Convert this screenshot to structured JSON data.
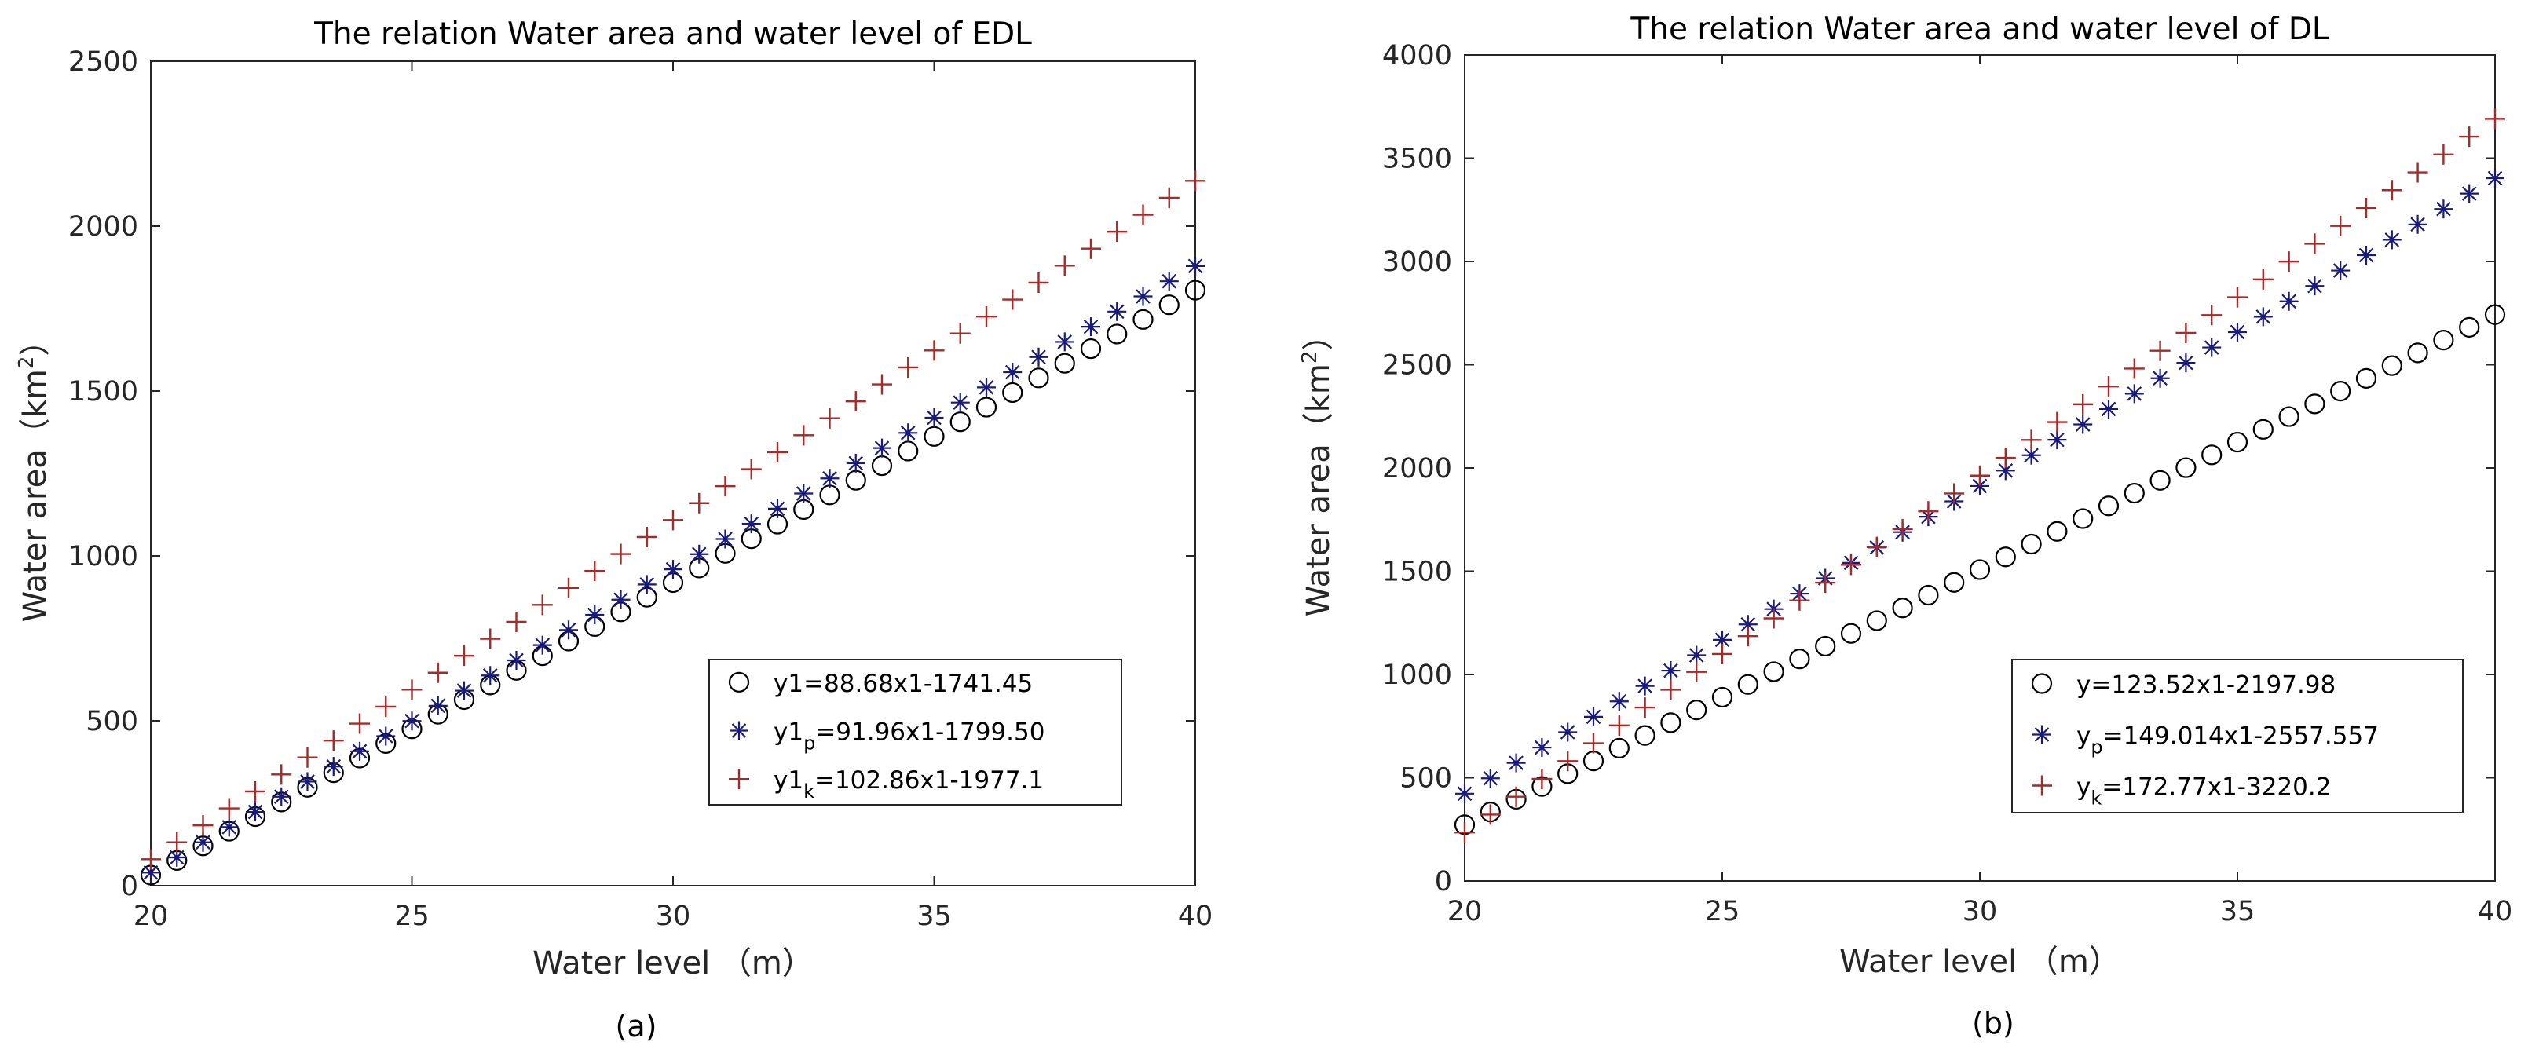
{
  "chart_data": [
    {
      "type": "scatter",
      "panel_label": "(a)",
      "title": "The relation Water area and water level of EDL",
      "xlabel": "Water level （m）",
      "ylabel": "Water area（km²）",
      "ylabel_base": "Water area（km",
      "ylabel_sup": "2",
      "ylabel_end": "）",
      "xlim": [
        20,
        40
      ],
      "ylim": [
        0,
        2500
      ],
      "xticks": [
        20,
        25,
        30,
        35,
        40
      ],
      "yticks": [
        0,
        500,
        1000,
        1500,
        2000,
        2500
      ],
      "x": [
        20,
        20.5,
        21,
        21.5,
        22,
        22.5,
        23,
        23.5,
        24,
        24.5,
        25,
        25.5,
        26,
        26.5,
        27,
        27.5,
        28,
        28.5,
        29,
        29.5,
        30,
        30.5,
        31,
        31.5,
        32,
        32.5,
        33,
        33.5,
        34,
        34.5,
        35,
        35.5,
        36,
        36.5,
        37,
        37.5,
        38,
        38.5,
        39,
        39.5,
        40
      ],
      "legend_position": "lower-right",
      "series": [
        {
          "name": "y1=88.68x1-1741.45",
          "marker": "circle",
          "color": "#000000",
          "slope": 88.68,
          "intercept": -1741.45,
          "legend": {
            "base": "y1",
            "sub": "",
            "rest": "=88.68x1-1741.45"
          }
        },
        {
          "name": "y1p=91.96x1-1799.50",
          "marker": "asterisk",
          "color": "#1a1a7a",
          "slope": 91.96,
          "intercept": -1799.5,
          "legend": {
            "base": "y1",
            "sub": "p",
            "rest": "=91.96x1-1799.50"
          }
        },
        {
          "name": "y1k=102.86x1-1977.1",
          "marker": "plus",
          "color": "#a52a2a",
          "slope": 102.86,
          "intercept": -1977.1,
          "legend": {
            "base": "y1",
            "sub": "k",
            "rest": "=102.86x1-1977.1"
          }
        }
      ]
    },
    {
      "type": "scatter",
      "panel_label": "(b)",
      "title": "The relation Water area and water level of DL",
      "xlabel": "Water level （m）",
      "ylabel": "Water area（km²）",
      "ylabel_base": "Water area（km",
      "ylabel_sup": "2",
      "ylabel_end": "）",
      "xlim": [
        20,
        40
      ],
      "ylim": [
        0,
        4000
      ],
      "xticks": [
        20,
        25,
        30,
        35,
        40
      ],
      "yticks": [
        0,
        500,
        1000,
        1500,
        2000,
        2500,
        3000,
        3500,
        4000
      ],
      "x": [
        20,
        20.5,
        21,
        21.5,
        22,
        22.5,
        23,
        23.5,
        24,
        24.5,
        25,
        25.5,
        26,
        26.5,
        27,
        27.5,
        28,
        28.5,
        29,
        29.5,
        30,
        30.5,
        31,
        31.5,
        32,
        32.5,
        33,
        33.5,
        34,
        34.5,
        35,
        35.5,
        36,
        36.5,
        37,
        37.5,
        38,
        38.5,
        39,
        39.5,
        40
      ],
      "legend_position": "lower-right",
      "series": [
        {
          "name": "y=123.52x1-2197.98",
          "marker": "circle",
          "color": "#000000",
          "slope": 123.52,
          "intercept": -2197.98,
          "legend": {
            "base": "y",
            "sub": "",
            "rest": "=123.52x1-2197.98"
          }
        },
        {
          "name": "yp=149.014x1-2557.557",
          "marker": "asterisk",
          "color": "#1a1a7a",
          "slope": 149.014,
          "intercept": -2557.557,
          "legend": {
            "base": "y",
            "sub": "p",
            "rest": "=149.014x1-2557.557"
          }
        },
        {
          "name": "yk=172.77x1-3220.2",
          "marker": "plus",
          "color": "#a52a2a",
          "slope": 172.77,
          "intercept": -3220.2,
          "legend": {
            "base": "y",
            "sub": "k",
            "rest": "=172.77x1-3220.2"
          }
        }
      ]
    }
  ]
}
